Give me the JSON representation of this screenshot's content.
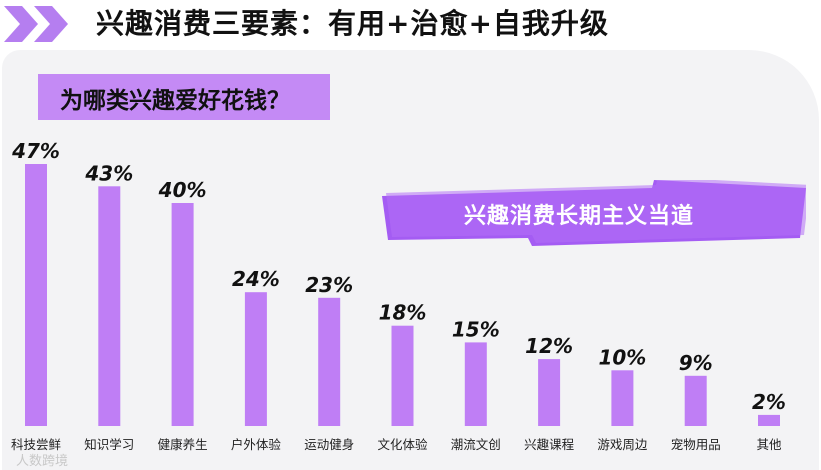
{
  "header": {
    "title": "兴趣消费三要素：有用+治愈+自我升级"
  },
  "question": {
    "text": "为哪类兴趣爱好花钱？"
  },
  "banner": {
    "text": "兴趣消费长期主义当道"
  },
  "watermark": {
    "text": "人数跨境"
  },
  "colors": {
    "bar": "#bf7ef5",
    "accent": "#a855f7",
    "chevron": "#b57ef0"
  },
  "chart_data": {
    "type": "bar",
    "categories": [
      "科技尝鲜",
      "知识学习",
      "健康养生",
      "户外体验",
      "运动健身",
      "文化体验",
      "潮流文创",
      "兴趣课程",
      "游戏周边",
      "宠物用品",
      "其他"
    ],
    "values": [
      47,
      43,
      40,
      24,
      23,
      18,
      15,
      12,
      10,
      9,
      2
    ],
    "value_labels": [
      "47%",
      "43%",
      "40%",
      "24%",
      "23%",
      "18%",
      "15%",
      "12%",
      "10%",
      "9%",
      "2%"
    ],
    "unit": "%",
    "ylim": [
      0,
      47
    ],
    "title": "",
    "xlabel": "",
    "ylabel": ""
  }
}
